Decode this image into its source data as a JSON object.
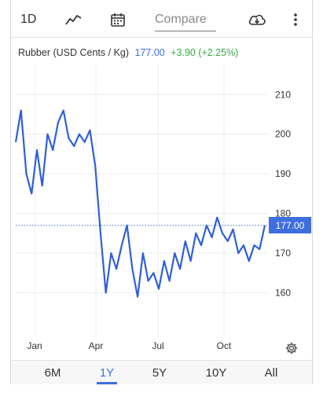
{
  "toolbar": {
    "interval": "1D",
    "chart_type_icon": "line-chart-icon",
    "calendar_icon": "calendar-icon",
    "compare_placeholder": "Compare",
    "download_icon": "cloud-download-icon",
    "more_icon": "more-vertical-icon"
  },
  "legend": {
    "name": "Rubber (USD Cents / Kg)",
    "last": "177.00",
    "change": "+3.90 (+2.25%)"
  },
  "price_tag": "177.00",
  "colors": {
    "line": "#2f5fd8",
    "accent": "#3e6fe0",
    "positive": "#39a846"
  },
  "settings_icon": "gear-icon",
  "ranges": [
    {
      "label": "6M",
      "active": false
    },
    {
      "label": "1Y",
      "active": true
    },
    {
      "label": "5Y",
      "active": false
    },
    {
      "label": "10Y",
      "active": false
    },
    {
      "label": "All",
      "active": false
    }
  ],
  "chart_data": {
    "type": "line",
    "title": "Rubber (USD Cents / Kg)",
    "x_tick_labels": [
      "Jan",
      "Apr",
      "Jul",
      "Oct"
    ],
    "y_ticks": [
      160,
      170,
      180,
      190,
      200,
      210
    ],
    "ylim": [
      149,
      216
    ],
    "last_value": 177.0,
    "grid": true,
    "series": [
      {
        "name": "Rubber (USD Cents / Kg)",
        "x": [
          "Dec 01",
          "Dec 08",
          "Dec 15",
          "Dec 22",
          "Jan 01",
          "Jan 08",
          "Jan 15",
          "Jan 22",
          "Feb 01",
          "Feb 08",
          "Feb 15",
          "Feb 22",
          "Mar 01",
          "Mar 08",
          "Mar 15",
          "Mar 22",
          "Apr 01",
          "Apr 08",
          "Apr 15",
          "Apr 22",
          "May 01",
          "May 08",
          "May 15",
          "May 22",
          "Jun 01",
          "Jun 08",
          "Jun 15",
          "Jun 22",
          "Jul 01",
          "Jul 08",
          "Jul 15",
          "Jul 22",
          "Aug 01",
          "Aug 08",
          "Aug 15",
          "Aug 22",
          "Sep 01",
          "Sep 08",
          "Sep 15",
          "Sep 22",
          "Oct 01",
          "Oct 08",
          "Oct 15",
          "Oct 22",
          "Nov 01",
          "Nov 08",
          "Nov 15",
          "Nov 22"
        ],
        "values": [
          198,
          206,
          190,
          185,
          196,
          187,
          200,
          196,
          203,
          206,
          199,
          197,
          200,
          198,
          201,
          192,
          175,
          160,
          170,
          166,
          172,
          177,
          166,
          159,
          170,
          163,
          165,
          161,
          168,
          163,
          170,
          166,
          173,
          168,
          175,
          172,
          177,
          174,
          179,
          175,
          173,
          176,
          170,
          172,
          168,
          172,
          171,
          177
        ]
      }
    ]
  }
}
